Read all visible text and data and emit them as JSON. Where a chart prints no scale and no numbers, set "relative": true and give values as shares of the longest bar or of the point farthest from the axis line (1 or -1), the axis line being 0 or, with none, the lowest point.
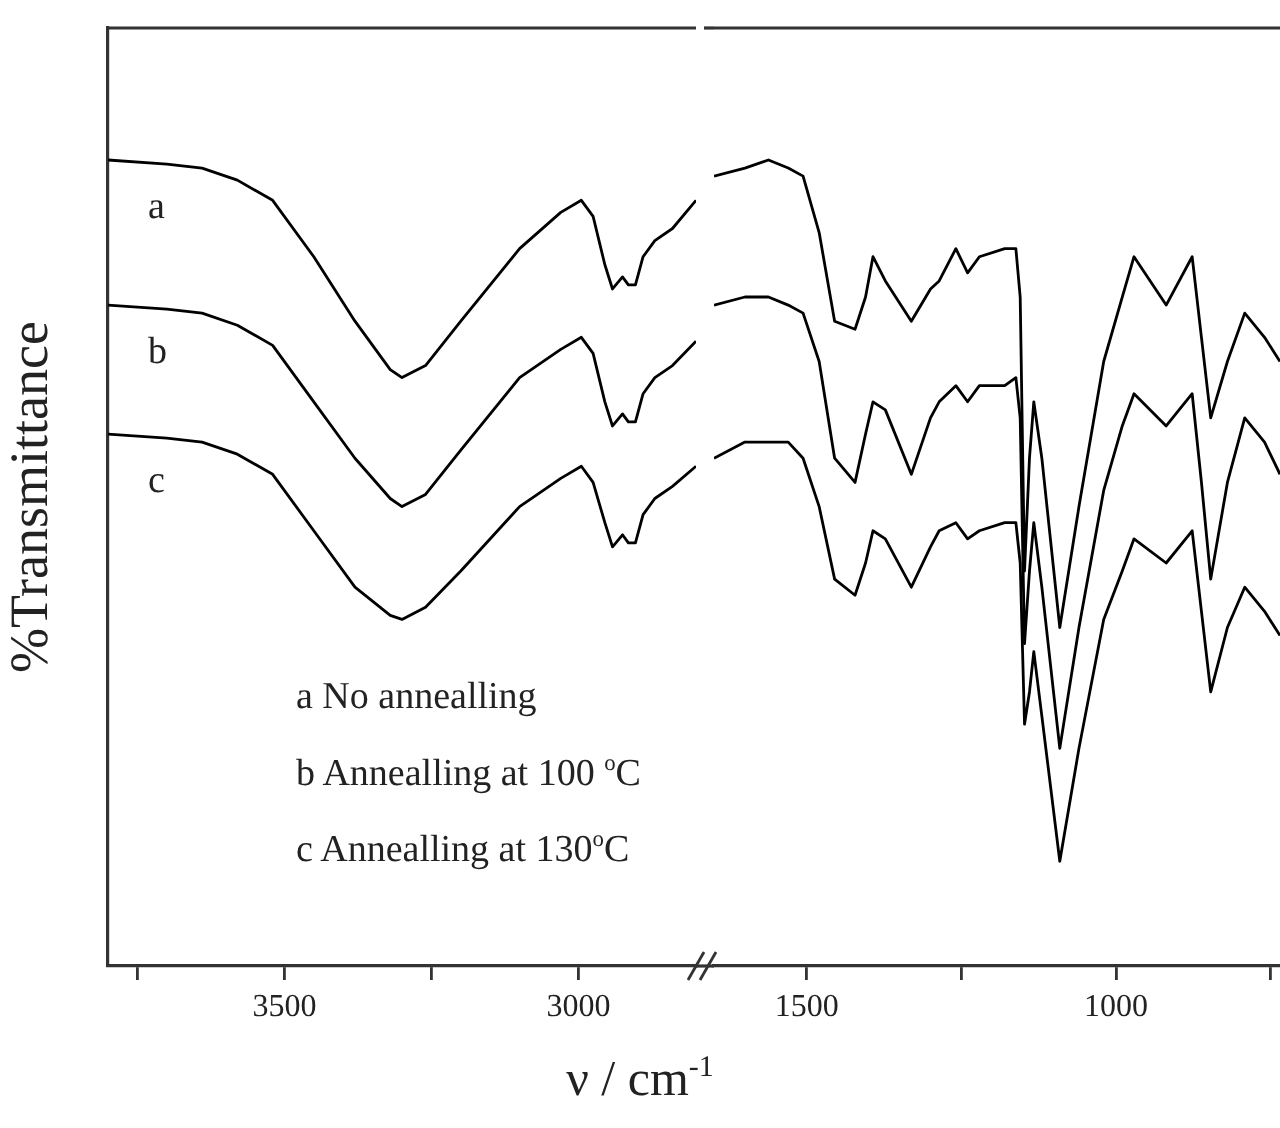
{
  "chart_data": [
    {
      "type": "line",
      "relative": true,
      "ylabel": "%Transmittance",
      "xlabel": "ν / cm$^{-1}$",
      "xlim": [
        3800,
        2800
      ],
      "xticks": [
        {
          "value": 3750,
          "label": null
        },
        3500,
        {
          "value": 3250,
          "label": null
        },
        3000
      ],
      "annotations": [
        "a  No annealling",
        "b  Annealling at 100 $^{o}$C",
        "c  Annealling at 130$^{o}$C"
      ],
      "series": [
        {
          "name": "a",
          "color": "#000000",
          "x": [
            3800,
            3700,
            3640,
            3580,
            3520,
            3450,
            3380,
            3320,
            3300,
            3260,
            3200,
            3100,
            3030,
            2995,
            2975,
            2955,
            2942,
            2925,
            2915,
            2903,
            2890,
            2870,
            2840,
            2800
          ],
          "values": [
            1.0,
            0.995,
            0.99,
            0.975,
            0.95,
            0.88,
            0.8,
            0.74,
            0.73,
            0.745,
            0.8,
            0.89,
            0.935,
            0.95,
            0.93,
            0.87,
            0.84,
            0.855,
            0.845,
            0.845,
            0.88,
            0.9,
            0.915,
            0.95
          ]
        },
        {
          "name": "b",
          "color": "#000000",
          "x": [
            3800,
            3700,
            3640,
            3580,
            3520,
            3450,
            3380,
            3320,
            3300,
            3260,
            3200,
            3100,
            3030,
            2995,
            2975,
            2955,
            2942,
            2925,
            2915,
            2903,
            2890,
            2870,
            2840,
            2800
          ],
          "values": [
            0.82,
            0.815,
            0.81,
            0.795,
            0.77,
            0.7,
            0.63,
            0.58,
            0.57,
            0.585,
            0.64,
            0.73,
            0.765,
            0.78,
            0.76,
            0.7,
            0.67,
            0.685,
            0.675,
            0.675,
            0.71,
            0.73,
            0.745,
            0.775
          ]
        },
        {
          "name": "c",
          "color": "#000000",
          "x": [
            3800,
            3700,
            3640,
            3580,
            3520,
            3450,
            3380,
            3320,
            3300,
            3260,
            3200,
            3100,
            3030,
            2995,
            2975,
            2955,
            2942,
            2925,
            2915,
            2903,
            2890,
            2870,
            2840,
            2800
          ],
          "values": [
            0.66,
            0.655,
            0.65,
            0.635,
            0.61,
            0.54,
            0.47,
            0.435,
            0.43,
            0.445,
            0.49,
            0.57,
            0.605,
            0.62,
            0.6,
            0.55,
            0.52,
            0.535,
            0.525,
            0.525,
            0.56,
            0.58,
            0.595,
            0.62
          ]
        }
      ]
    },
    {
      "type": "line",
      "relative": true,
      "xlim": [
        1650,
        735
      ],
      "xticks": [
        1500,
        {
          "value": 1250,
          "label": null
        },
        1000,
        {
          "value": 750,
          "label": null
        }
      ],
      "series": [
        {
          "color": "#000000",
          "x": [
            1650,
            1600,
            1562,
            1530,
            1506,
            1480,
            1455,
            1422,
            1405,
            1393,
            1373,
            1331,
            1300,
            1286,
            1259,
            1240,
            1221,
            1180,
            1162,
            1155,
            1148,
            1140,
            1133,
            1120,
            1091,
            1060,
            1020,
            990,
            971,
            919,
            877,
            862,
            847,
            820,
            792,
            760,
            735
          ],
          "values": [
            0.98,
            0.99,
            1,
            0.99,
            0.98,
            0.91,
            0.8,
            0.79,
            0.83,
            0.88,
            0.85,
            0.8,
            0.84,
            0.85,
            0.89,
            0.86,
            0.88,
            0.89,
            0.89,
            0.83,
            0.49,
            0.63,
            0.7,
            0.63,
            0.42,
            0.57,
            0.75,
            0.83,
            0.88,
            0.82,
            0.88,
            0.78,
            0.68,
            0.75,
            0.81,
            0.78,
            0.75
          ]
        },
        {
          "color": "#000000",
          "x": [
            1650,
            1600,
            1562,
            1530,
            1506,
            1480,
            1455,
            1422,
            1405,
            1393,
            1373,
            1331,
            1300,
            1286,
            1259,
            1240,
            1221,
            1180,
            1162,
            1155,
            1148,
            1140,
            1133,
            1120,
            1091,
            1060,
            1020,
            990,
            971,
            919,
            877,
            862,
            847,
            820,
            792,
            760,
            735
          ],
          "values": [
            0.82,
            0.83,
            0.83,
            0.82,
            0.81,
            0.75,
            0.63,
            0.6,
            0.66,
            0.7,
            0.69,
            0.61,
            0.68,
            0.7,
            0.72,
            0.7,
            0.72,
            0.72,
            0.73,
            0.68,
            0.4,
            0.49,
            0.55,
            0.47,
            0.27,
            0.42,
            0.59,
            0.67,
            0.71,
            0.67,
            0.71,
            0.6,
            0.48,
            0.6,
            0.68,
            0.65,
            0.61
          ]
        },
        {
          "color": "#000000",
          "x": [
            1650,
            1600,
            1562,
            1530,
            1506,
            1480,
            1455,
            1422,
            1405,
            1393,
            1373,
            1331,
            1300,
            1286,
            1259,
            1240,
            1221,
            1180,
            1162,
            1155,
            1148,
            1140,
            1133,
            1120,
            1091,
            1060,
            1020,
            990,
            971,
            919,
            877,
            862,
            847,
            820,
            792,
            760,
            735
          ],
          "values": [
            0.63,
            0.65,
            0.65,
            0.65,
            0.63,
            0.57,
            0.48,
            0.46,
            0.5,
            0.54,
            0.53,
            0.47,
            0.52,
            0.54,
            0.55,
            0.53,
            0.54,
            0.55,
            0.55,
            0.5,
            0.3,
            0.34,
            0.39,
            0.31,
            0.13,
            0.27,
            0.43,
            0.49,
            0.53,
            0.5,
            0.54,
            0.44,
            0.34,
            0.42,
            0.47,
            0.44,
            0.41
          ]
        }
      ]
    }
  ]
}
